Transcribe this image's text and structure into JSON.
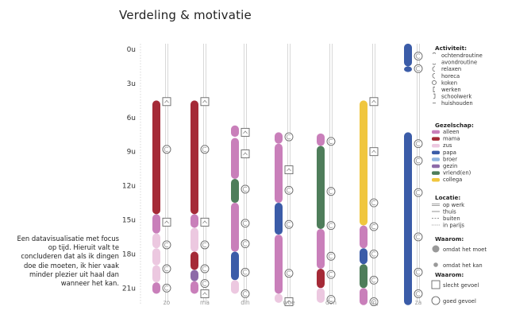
{
  "chart_data": {
    "type": "timeline",
    "title": "Verdeling & motivatie",
    "description": "Een datavisualisatie met focus op tijd. Hieruit valt te concluderen dat als ik dingen doe die moeten, ik hier vaak minder plezier uit haal dan wanneer het kan.",
    "y_axis_hours": [
      "0u",
      "3u",
      "6u",
      "9u",
      "12u",
      "15u",
      "18u",
      "21u"
    ],
    "y_range_hours": [
      0,
      24
    ],
    "days": [
      {
        "label": "zo",
        "segments": [
          [
            4.5,
            14.5,
            "mama"
          ],
          [
            14.5,
            16.2,
            "alleen"
          ],
          [
            16.2,
            17.5,
            "zus"
          ],
          [
            17.5,
            19,
            "zus"
          ],
          [
            19,
            20.5,
            "zus"
          ],
          [
            20.5,
            21.5,
            "alleen"
          ]
        ],
        "markers": [
          [
            4.6,
            "square"
          ],
          [
            8.8,
            "circle"
          ],
          [
            15.2,
            "square"
          ],
          [
            17.2,
            "circle"
          ],
          [
            19.3,
            "circle"
          ],
          [
            21,
            "circle"
          ]
        ]
      },
      {
        "label": "ma",
        "segments": [
          [
            4.5,
            14.5,
            "mama"
          ],
          [
            14.5,
            15.7,
            "alleen"
          ],
          [
            15.7,
            17.8,
            "zus"
          ],
          [
            17.8,
            19.4,
            "mama"
          ],
          [
            19.4,
            20.4,
            "gezin"
          ],
          [
            20.4,
            21.5,
            "alleen"
          ]
        ],
        "markers": [
          [
            4.6,
            "square"
          ],
          [
            8.8,
            "circle"
          ],
          [
            15.2,
            "square"
          ],
          [
            17.2,
            "circle"
          ],
          [
            19.3,
            "circle"
          ],
          [
            20.6,
            "circle"
          ],
          [
            21.5,
            "square"
          ]
        ]
      },
      {
        "label": "din",
        "segments": [
          [
            6.7,
            7.7,
            "alleen"
          ],
          [
            7.8,
            11.4,
            "alleen"
          ],
          [
            11.4,
            13.5,
            "vriend(en)"
          ],
          [
            13.5,
            17.8,
            "alleen"
          ],
          [
            17.8,
            20.3,
            "papa"
          ],
          [
            20.3,
            21.5,
            "zus"
          ]
        ],
        "markers": [
          [
            7.3,
            "square"
          ],
          [
            9.2,
            "square"
          ],
          [
            12.3,
            "circle"
          ],
          [
            15.3,
            "circle"
          ],
          [
            17.1,
            "circle"
          ],
          [
            19.6,
            "circle"
          ],
          [
            21.5,
            "circle"
          ]
        ]
      },
      {
        "label": "woe",
        "segments": [
          [
            7.3,
            8.3,
            "alleen"
          ],
          [
            8.3,
            13.5,
            "alleen"
          ],
          [
            13.5,
            16.3,
            "papa"
          ],
          [
            16.3,
            21.5,
            "alleen"
          ],
          [
            21.5,
            22.3,
            "zus"
          ]
        ],
        "markers": [
          [
            7.7,
            "circle"
          ],
          [
            10.6,
            "square"
          ],
          [
            12.4,
            "circle"
          ],
          [
            15.4,
            "circle"
          ],
          [
            19.7,
            "circle"
          ],
          [
            22.2,
            "square"
          ]
        ]
      },
      {
        "label": "don",
        "segments": [
          [
            7.4,
            8.5,
            "alleen"
          ],
          [
            8.5,
            15.8,
            "vriend(en)"
          ],
          [
            15.8,
            19.3,
            "alleen"
          ],
          [
            19.3,
            21,
            "mama"
          ],
          [
            21,
            22.3,
            "zus"
          ]
        ],
        "markers": [
          [
            8.1,
            "circle"
          ],
          [
            12.5,
            "circle"
          ],
          [
            15.5,
            "circle"
          ],
          [
            18.2,
            "circle"
          ],
          [
            19.8,
            "circle"
          ],
          [
            22,
            "circle"
          ]
        ]
      },
      {
        "label": "vrij",
        "segments": [
          [
            4.5,
            15.5,
            "collega"
          ],
          [
            15.5,
            17.5,
            "alleen"
          ],
          [
            17.5,
            18.9,
            "papa"
          ],
          [
            18.9,
            21,
            "vriend(en)"
          ],
          [
            21,
            22.5,
            "alleen"
          ]
        ],
        "markers": [
          [
            4.6,
            "square"
          ],
          [
            9,
            "square"
          ],
          [
            13.5,
            "circle"
          ],
          [
            15.6,
            "circle"
          ],
          [
            18,
            "circle"
          ],
          [
            20.3,
            "circle"
          ],
          [
            22.2,
            "circle"
          ]
        ]
      },
      {
        "label": "za",
        "segments": [
          [
            -0.5,
            1.5,
            "papa"
          ],
          [
            1.5,
            2,
            "papa"
          ],
          [
            7.3,
            22.5,
            "papa"
          ]
        ],
        "markers": [
          [
            0.6,
            "circle"
          ],
          [
            1.7,
            "circle"
          ],
          [
            8.3,
            "circle"
          ],
          [
            9.8,
            "circle"
          ],
          [
            12.6,
            "circle"
          ],
          [
            16.5,
            "circle"
          ],
          [
            19.6,
            "circle"
          ],
          [
            21.5,
            "circle"
          ]
        ]
      }
    ],
    "legend": {
      "activiteit": {
        "title": "Activiteit:",
        "items": [
          "ochtendroutine",
          "avondroutine",
          "relaxen",
          "horeca",
          "koken",
          "werken",
          "schoolwerk",
          "huishouden"
        ]
      },
      "gezelschap": {
        "title": "Gezelschap:",
        "items": [
          {
            "name": "alleen",
            "color": "#c97fba"
          },
          {
            "name": "mama",
            "color": "#a52a37"
          },
          {
            "name": "zus",
            "color": "#ecc8e0"
          },
          {
            "name": "papa",
            "color": "#3b5ca8"
          },
          {
            "name": "broer",
            "color": "#8fb3df"
          },
          {
            "name": "gezin",
            "color": "#8d6aa8"
          },
          {
            "name": "vriend(en)",
            "color": "#4e7d5a"
          },
          {
            "name": "collega",
            "color": "#f0c63e"
          }
        ]
      },
      "locatie": {
        "title": "Locatie:",
        "items": [
          "op werk",
          "thuis",
          "buiten",
          "in parijs"
        ]
      },
      "waarom1": {
        "title": "Waarom:",
        "items": [
          "omdat het moet",
          "omdat het kan"
        ]
      },
      "waarom2": {
        "title": "Waarom:",
        "items": [
          "slecht gevoel",
          "goed gevoel"
        ]
      }
    }
  }
}
